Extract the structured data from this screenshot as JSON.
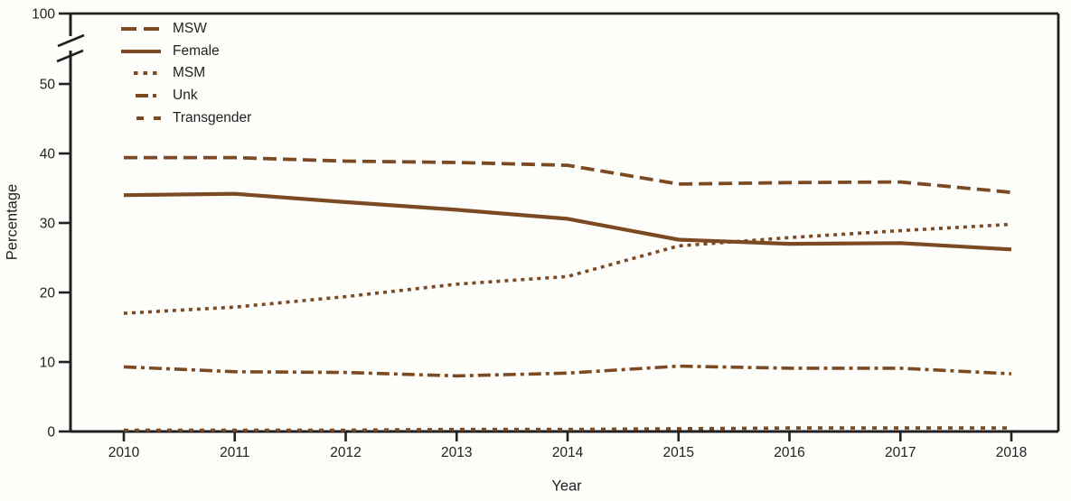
{
  "figure": {
    "background": "#fdfdfa",
    "line_color": "#7B4A22",
    "axis_color": "#231f20"
  },
  "chart_data": {
    "type": "line",
    "title": "",
    "xlabel": "Year",
    "ylabel": "Percentage",
    "x": [
      2010,
      2011,
      2012,
      2013,
      2014,
      2015,
      2016,
      2017,
      2018
    ],
    "y_axis": {
      "ticks": [
        0,
        10,
        20,
        30,
        40,
        50,
        100
      ],
      "axis_break_between": [
        50,
        100
      ],
      "displayed_range": [
        0,
        50
      ]
    },
    "grid": false,
    "legend_position": "top-left",
    "series": [
      {
        "name": "MSW",
        "style": "long-dash",
        "values": [
          39.4,
          39.4,
          38.9,
          38.7,
          38.3,
          35.6,
          35.8,
          35.9,
          34.4
        ]
      },
      {
        "name": "Female",
        "style": "solid",
        "values": [
          34.0,
          34.2,
          33.0,
          31.9,
          30.6,
          27.6,
          27.0,
          27.1,
          26.2
        ]
      },
      {
        "name": "MSM",
        "style": "dotted",
        "values": [
          17.0,
          17.9,
          19.4,
          21.2,
          22.3,
          26.7,
          27.9,
          28.9,
          29.8
        ]
      },
      {
        "name": "Unk",
        "style": "dash-dot",
        "values": [
          9.3,
          8.6,
          8.5,
          8.0,
          8.4,
          9.4,
          9.1,
          9.1,
          8.3
        ]
      },
      {
        "name": "Transgender",
        "style": "short-dash",
        "values": [
          0.2,
          0.2,
          0.2,
          0.3,
          0.3,
          0.4,
          0.5,
          0.5,
          0.5
        ]
      }
    ]
  }
}
